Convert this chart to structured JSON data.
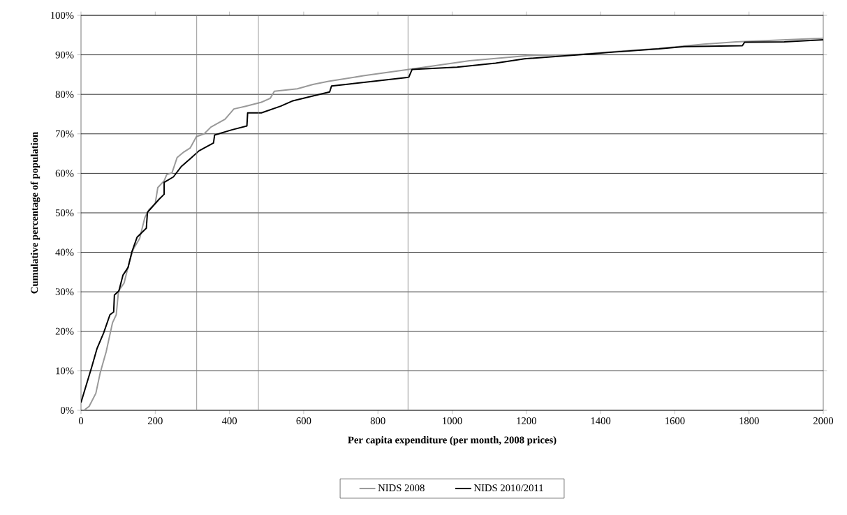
{
  "chart_data": {
    "type": "line",
    "xlabel": "Per capita expenditure (per month, 2008 prices)",
    "ylabel": "Cumulative percentage of population",
    "xlim": [
      0,
      2000
    ],
    "xticks": [
      0,
      200,
      400,
      600,
      800,
      1000,
      1200,
      1400,
      1600,
      1800,
      2000
    ],
    "ylim": [
      0,
      100
    ],
    "yticks": [
      {
        "value": 0,
        "label": "0%"
      },
      {
        "value": 10,
        "label": "10%"
      },
      {
        "value": 20,
        "label": "20%"
      },
      {
        "value": 30,
        "label": "30%"
      },
      {
        "value": 40,
        "label": "40%"
      },
      {
        "value": 50,
        "label": "50%"
      },
      {
        "value": 60,
        "label": "60%"
      },
      {
        "value": 70,
        "label": "70%"
      },
      {
        "value": 80,
        "label": "80%"
      },
      {
        "value": 90,
        "label": "90%"
      },
      {
        "value": 100,
        "label": "100%"
      }
    ],
    "grid": "y",
    "legend": "bottom",
    "marker": "none",
    "line_style": "solid",
    "ref_lines": [
      {
        "axis": "x",
        "value": 312,
        "color": "#808080"
      },
      {
        "axis": "x",
        "value": 478,
        "color": "#808080"
      },
      {
        "axis": "x",
        "value": 881,
        "color": "#808080"
      }
    ],
    "series": [
      {
        "name": "NIDS 2008",
        "color": "#999999",
        "x": [
          8,
          22,
          40,
          52,
          68,
          85,
          95,
          101,
          116,
          130,
          141,
          158,
          172,
          183,
          200,
          207,
          224,
          231,
          245,
          259,
          277,
          294,
          311,
          332,
          350,
          388,
          412,
          444,
          486,
          510,
          521,
          583,
          625,
          667,
          709,
          761,
          883,
          1047,
          1203,
          1307,
          1341,
          1436,
          1557,
          1678,
          1765,
          2000
        ],
        "values": [
          0,
          1.0,
          4.3,
          9.6,
          14.9,
          22.2,
          24.2,
          30.2,
          32.2,
          37.5,
          40.8,
          43.5,
          48.8,
          50.8,
          52.4,
          56.4,
          58.1,
          59.7,
          60.1,
          64.0,
          65.4,
          66.4,
          69.3,
          70.0,
          71.7,
          73.7,
          76.3,
          77.0,
          78.0,
          79.0,
          80.8,
          81.4,
          82.5,
          83.3,
          83.9,
          84.7,
          86.3,
          88.5,
          89.8,
          90.0,
          90.1,
          90.8,
          91.6,
          92.7,
          93.3,
          94.2
        ]
      },
      {
        "name": "NIDS 2010/2011",
        "color": "#000000",
        "x": [
          0,
          29,
          43,
          61,
          78,
          88,
          90,
          102,
          113,
          127,
          137,
          151,
          176,
          179,
          210,
          224,
          224,
          249,
          270,
          298,
          318,
          357,
          360,
          406,
          447,
          449,
          486,
          538,
          569,
          625,
          670,
          675,
          722,
          788,
          883,
          892,
          1013,
          1117,
          1195,
          1341,
          1436,
          1557,
          1626,
          1782,
          1788,
          1895,
          2000
        ],
        "values": [
          2.0,
          11.0,
          15.6,
          19.6,
          24.2,
          24.9,
          29.2,
          30.2,
          34.2,
          36.2,
          40.1,
          43.8,
          46.1,
          50.1,
          53.4,
          54.7,
          57.7,
          59.1,
          61.7,
          64.0,
          65.7,
          67.7,
          69.7,
          71.0,
          72.0,
          75.3,
          75.3,
          77.0,
          78.3,
          79.6,
          80.6,
          82.1,
          82.6,
          83.3,
          84.3,
          86.3,
          86.9,
          87.9,
          89.0,
          90.0,
          90.7,
          91.5,
          92.1,
          92.3,
          93.2,
          93.3,
          93.8
        ]
      }
    ]
  }
}
